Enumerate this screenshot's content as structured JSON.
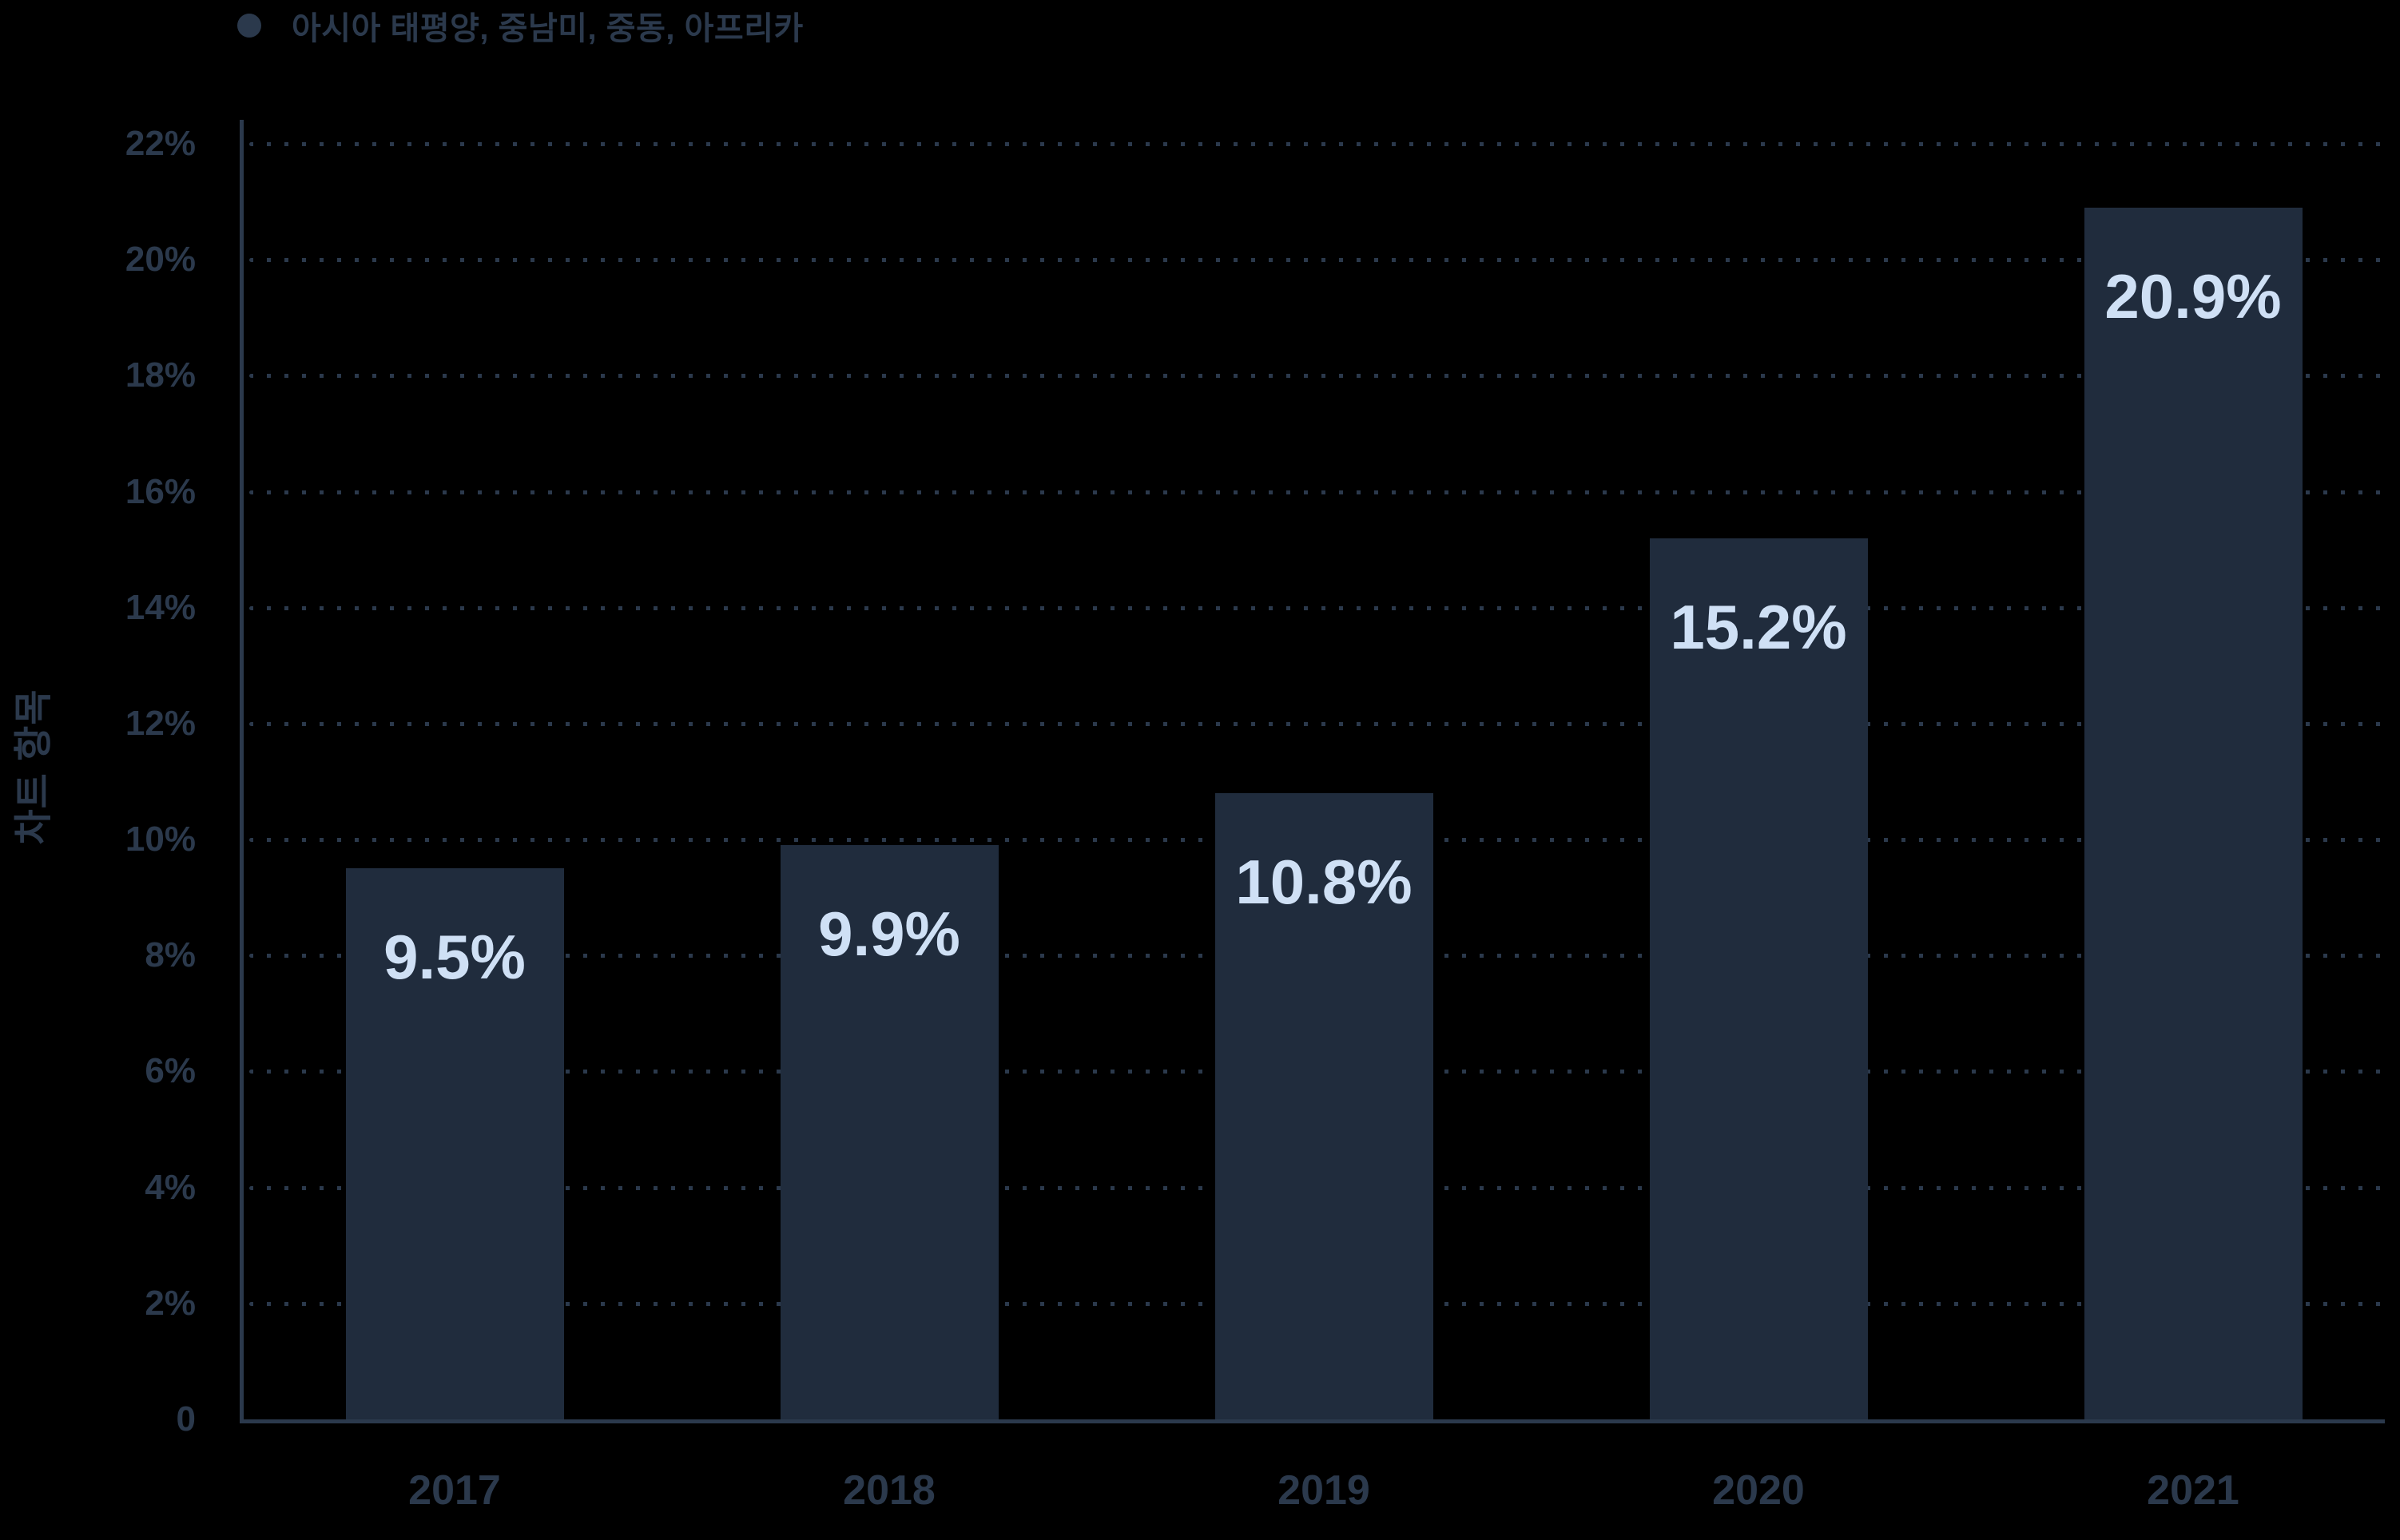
{
  "legend": {
    "label": "아시아 태평양, 중남미, 중동, 아프리카"
  },
  "y_axis_title": "차트 항목",
  "colors": {
    "background": "#000000",
    "bar_fill": "#202c3d",
    "axis_and_text": "#2b394c",
    "value_label": "#cfe0f5"
  },
  "chart_data": {
    "type": "bar",
    "title": "",
    "categories": [
      "2017",
      "2018",
      "2019",
      "2020",
      "2021"
    ],
    "series": [
      {
        "name": "아시아 태평양, 중남미, 중동, 아프리카",
        "values": [
          9.5,
          9.9,
          10.8,
          15.2,
          20.9
        ],
        "data_labels": [
          "9.5%",
          "9.9%",
          "10.8%",
          "15.2%",
          "20.9%"
        ]
      }
    ],
    "xlabel": "",
    "ylabel": "차트 항목",
    "ylim": [
      0,
      22
    ],
    "y_ticks": [
      {
        "value": 0,
        "label": "0"
      },
      {
        "value": 2,
        "label": "2%"
      },
      {
        "value": 4,
        "label": "4%"
      },
      {
        "value": 6,
        "label": "6%"
      },
      {
        "value": 8,
        "label": "8%"
      },
      {
        "value": 10,
        "label": "10%"
      },
      {
        "value": 12,
        "label": "12%"
      },
      {
        "value": 14,
        "label": "14%"
      },
      {
        "value": 16,
        "label": "16%"
      },
      {
        "value": 18,
        "label": "18%"
      },
      {
        "value": 20,
        "label": "20%"
      },
      {
        "value": 22,
        "label": "22%"
      }
    ],
    "grid": "horizontal-dotted",
    "legend_position": "top-left"
  }
}
